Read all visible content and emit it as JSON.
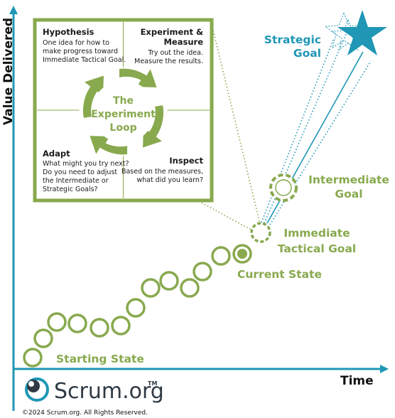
{
  "axes": {
    "y_label": "Value Delivered",
    "x_label": "Time"
  },
  "experiment_loop": {
    "center_label_lines": [
      "The",
      "Experiment",
      "Loop"
    ],
    "hypothesis": {
      "title": "Hypothesis",
      "lines": [
        "One idea for how to",
        "make progress toward",
        "Immediate Tactical Goal."
      ]
    },
    "experiment": {
      "title_lines": [
        "Experiment &",
        "Measure"
      ],
      "lines": [
        "Try out the idea.",
        "Measure the results."
      ]
    },
    "adapt": {
      "title": "Adapt",
      "lines": [
        "What might you try next?",
        "Do you need to adjust",
        "the Intermediate or",
        "Strategic Goals?"
      ]
    },
    "inspect": {
      "title": "Inspect",
      "lines": [
        "Based on the measures,",
        "what did you learn?"
      ]
    }
  },
  "labels": {
    "starting_state": "Starting State",
    "current_state": "Current State",
    "immediate_goal_lines": [
      "Immediate",
      "Tactical Goal"
    ],
    "intermediate_goal_lines": [
      "Intermediate",
      "Goal"
    ],
    "strategic_goal_lines": [
      "Strategic",
      "Goal"
    ]
  },
  "footer": {
    "brand": "Scrum.org",
    "trademark": "TM",
    "copyright": "©2024 Scrum.org. All Rights Reserved."
  },
  "colors": {
    "green": "#88a94e",
    "blue": "#1f97b5",
    "dark": "#111111"
  },
  "icons": [
    "star-icon",
    "scrum-org-logo-icon",
    "axis-arrow-icon"
  ]
}
